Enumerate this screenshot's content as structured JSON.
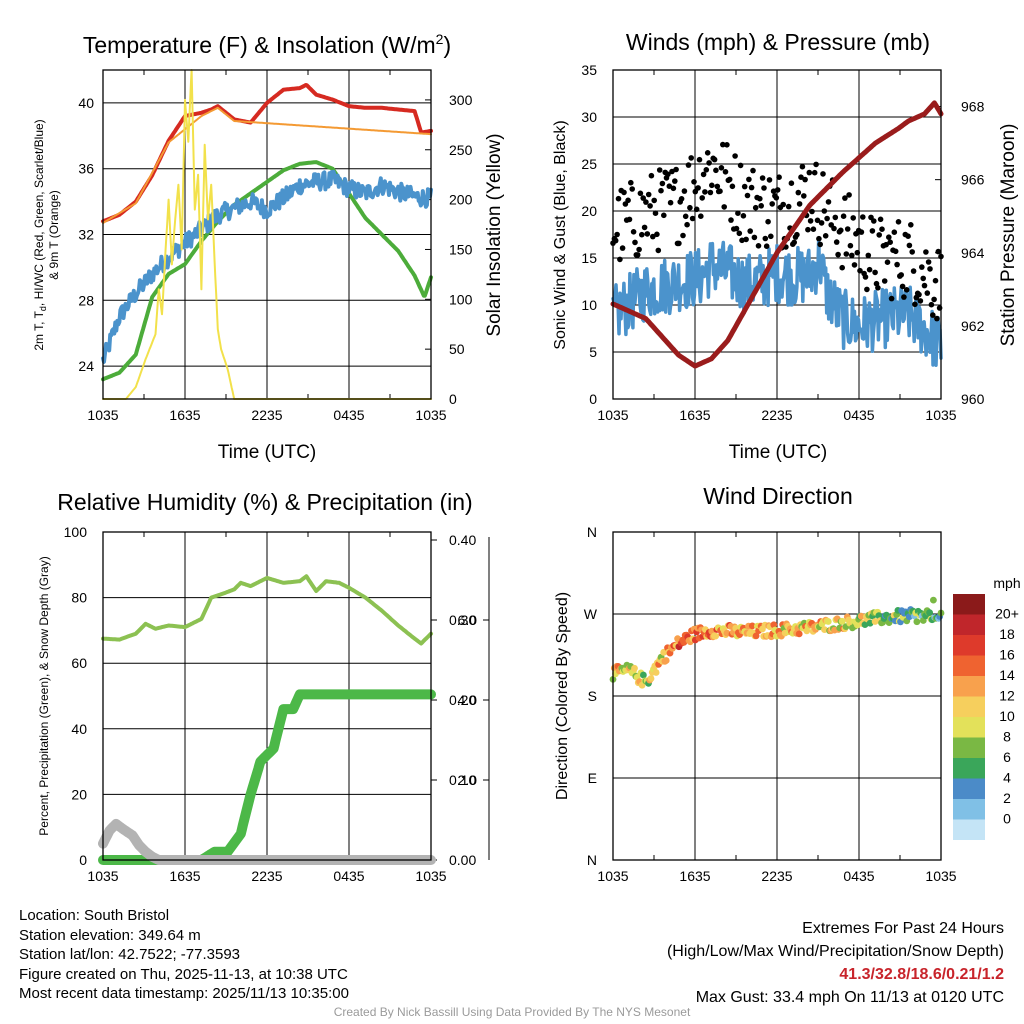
{
  "chart_data": [
    {
      "id": "temp",
      "type": "line",
      "title": "Temperature (F) & Insolation (W/m",
      "title_sup": "2",
      "title_close": ")",
      "xlabel": "Time (UTC)",
      "ylabel_lines": [
        "2m T, T",
        "d",
        ", HI/WC (Red, Green, Scarlet/Blue)",
        "& 9m T (Orange)"
      ],
      "y2label": "Solar Insolation (Yellow)",
      "xticks": [
        "1035",
        "1635",
        "2235",
        "0435",
        "1035"
      ],
      "ylim": [
        22,
        42
      ],
      "yticks": [
        24,
        28,
        32,
        36,
        40
      ],
      "y2lim": [
        0,
        330
      ],
      "y2ticks": [
        0,
        50,
        100,
        150,
        200,
        250,
        300
      ],
      "series": [
        {
          "name": "2m T",
          "color": "#d62a21",
          "width": 4,
          "x": [
            0,
            0.05,
            0.1,
            0.15,
            0.2,
            0.25,
            0.3,
            0.33,
            0.35,
            0.4,
            0.45,
            0.5,
            0.55,
            0.6,
            0.62,
            0.65,
            0.7,
            0.75,
            0.8,
            0.85,
            0.9,
            0.95,
            0.97,
            1.0
          ],
          "y": [
            32.8,
            33.2,
            34.0,
            35.6,
            37.7,
            39.2,
            39.4,
            39.6,
            39.8,
            39.0,
            38.8,
            40.0,
            40.8,
            40.9,
            41.1,
            40.5,
            40.2,
            39.8,
            39.7,
            39.7,
            39.6,
            39.5,
            38.2,
            38.3
          ]
        },
        {
          "name": "9m T",
          "color": "#f49a33",
          "width": 2,
          "x": [
            0,
            0.1,
            0.2,
            0.3,
            0.35,
            0.4,
            1.0
          ],
          "y": [
            32.7,
            33.9,
            37.6,
            39.2,
            39.7,
            38.9,
            38.1
          ]
        },
        {
          "name": "Td",
          "color": "#4cac3a",
          "width": 4,
          "x": [
            0,
            0.05,
            0.1,
            0.15,
            0.2,
            0.25,
            0.3,
            0.35,
            0.4,
            0.45,
            0.5,
            0.55,
            0.6,
            0.65,
            0.7,
            0.75,
            0.8,
            0.85,
            0.9,
            0.95,
            0.98,
            1.0
          ],
          "y": [
            23.2,
            23.6,
            24.7,
            28.2,
            29.6,
            30.2,
            31.6,
            32.8,
            33.8,
            34.5,
            35.2,
            35.9,
            36.3,
            36.4,
            36.0,
            34.5,
            33.0,
            32.0,
            31.0,
            29.5,
            28.2,
            29.4
          ]
        },
        {
          "name": "HI/WC",
          "color": "#4b93cc",
          "width": 4,
          "noise": 0.55,
          "x": [
            0,
            0.05,
            0.1,
            0.15,
            0.2,
            0.25,
            0.3,
            0.35,
            0.4,
            0.45,
            0.5,
            0.55,
            0.6,
            0.65,
            0.7,
            0.75,
            0.8,
            0.85,
            0.9,
            0.95,
            1.0
          ],
          "y": [
            24.3,
            27.0,
            28.4,
            29.6,
            30.6,
            31.5,
            32.3,
            33.2,
            33.6,
            34.0,
            33.5,
            34.2,
            35.0,
            35.2,
            35.3,
            34.8,
            34.5,
            35.0,
            34.6,
            34.3,
            34.2
          ]
        },
        {
          "name": "Solar",
          "axis": "y2",
          "color": "#f2e14b",
          "width": 2,
          "x": [
            0,
            0.07,
            0.1,
            0.13,
            0.16,
            0.17,
            0.18,
            0.19,
            0.2,
            0.21,
            0.22,
            0.23,
            0.24,
            0.25,
            0.26,
            0.27,
            0.28,
            0.29,
            0.3,
            0.31,
            0.32,
            0.33,
            0.34,
            0.35,
            0.36,
            0.38,
            0.4,
            0.45,
            1.0
          ],
          "y": [
            0,
            0,
            12,
            40,
            65,
            110,
            85,
            145,
            200,
            135,
            180,
            215,
            150,
            300,
            258,
            330,
            190,
            225,
            110,
            255,
            180,
            215,
            140,
            70,
            50,
            30,
            0,
            0,
            0
          ]
        }
      ]
    },
    {
      "id": "wind",
      "type": "scatter",
      "title": "Winds (mph) & Pressure (mb)",
      "xlabel": "Time (UTC)",
      "ylabel": "Sonic Wind & Gust (Blue, Black)",
      "y2label": "Station Pressure (Maroon)",
      "xticks": [
        "1035",
        "1635",
        "2235",
        "0435",
        "1035"
      ],
      "ylim": [
        0,
        35
      ],
      "yticks": [
        0,
        5,
        10,
        15,
        20,
        25,
        30,
        35
      ],
      "y2lim": [
        960,
        969
      ],
      "y2ticks": [
        960,
        962,
        964,
        966,
        968
      ],
      "sustained": {
        "color": "#4b93cc",
        "x": [
          0,
          0.1,
          0.2,
          0.27,
          0.3,
          0.35,
          0.4,
          0.45,
          0.5,
          0.55,
          0.6,
          0.63,
          0.65,
          0.7,
          0.75,
          0.8,
          0.85,
          0.9,
          0.95,
          1.0
        ],
        "y": [
          8.8,
          11.5,
          12.5,
          13.0,
          14.2,
          13.5,
          12.3,
          12.5,
          13.5,
          13.0,
          13.2,
          15.0,
          11.5,
          8.5,
          7.8,
          8.3,
          8.8,
          9.0,
          7.5,
          5.5
        ],
        "noise": 3.2
      },
      "gust": {
        "color": "#000000",
        "x": [
          0,
          0.2,
          0.3,
          0.4,
          0.5,
          0.6,
          0.7,
          0.8,
          0.9,
          1.0
        ],
        "y": [
          18,
          21,
          25,
          21,
          20,
          22,
          18,
          15,
          15,
          12
        ],
        "spread": 4.5,
        "count": 240
      },
      "pressure": {
        "color": "#9a1c1c",
        "x": [
          0,
          0.1,
          0.2,
          0.25,
          0.3,
          0.35,
          0.4,
          0.5,
          0.6,
          0.7,
          0.8,
          0.87,
          0.9,
          0.95,
          0.98,
          1.0
        ],
        "y": [
          962.6,
          962.2,
          961.2,
          960.9,
          961.1,
          961.6,
          962.4,
          964.0,
          965.3,
          966.2,
          967.0,
          967.4,
          967.6,
          967.8,
          968.1,
          967.8
        ]
      }
    },
    {
      "id": "rh",
      "type": "line",
      "title": "Relative Humidity (%) & Precipitation (in)",
      "ylabel_lines": [
        "Percent, Precipitation (Green), & Snow Depth (Gray)"
      ],
      "xticks": [
        "1035",
        "1635",
        "2235",
        "0435",
        "1035"
      ],
      "ylim": [
        0,
        100
      ],
      "yticks": [
        0,
        20,
        40,
        60,
        80,
        100
      ],
      "y2lim": [
        0,
        0.41
      ],
      "y2ticks": [
        "0.00",
        "0.10",
        "0.20",
        "0.30",
        "0.40"
      ],
      "y3ticks": [
        "2.0",
        "4.0",
        "6.0"
      ],
      "series": [
        {
          "name": "RH",
          "color": "#8cc152",
          "width": 4,
          "x": [
            0,
            0.05,
            0.1,
            0.13,
            0.16,
            0.2,
            0.25,
            0.3,
            0.33,
            0.36,
            0.4,
            0.42,
            0.45,
            0.5,
            0.55,
            0.6,
            0.62,
            0.65,
            0.68,
            0.72,
            0.75,
            0.8,
            0.85,
            0.9,
            0.95,
            0.97,
            1.0
          ],
          "y": [
            67.5,
            67.2,
            69,
            72,
            70.5,
            71.5,
            71,
            73.5,
            80,
            81,
            82.5,
            84.5,
            83.5,
            86,
            84.5,
            85,
            86.5,
            82,
            85,
            84.5,
            83,
            80,
            76,
            71.5,
            67.5,
            66,
            69
          ]
        },
        {
          "name": "Precip",
          "color": "#4cb848",
          "width": 10,
          "x": [
            0,
            0.3,
            0.34,
            0.38,
            0.42,
            0.45,
            0.48,
            0.52,
            0.55,
            0.58,
            0.6,
            0.65,
            1.0
          ],
          "y": [
            0,
            0,
            2.5,
            2.5,
            8,
            20,
            30,
            34,
            46,
            46,
            50.5,
            50.5,
            50.5
          ]
        },
        {
          "name": "Snow",
          "color": "#b3b3b3",
          "width": 10,
          "x": [
            0,
            0.02,
            0.04,
            0.06,
            0.09,
            0.11,
            0.13,
            0.15,
            0.17
          ],
          "y": [
            5,
            9,
            11,
            9.5,
            7.5,
            4.5,
            2.5,
            1,
            0
          ]
        }
      ]
    },
    {
      "id": "dir",
      "type": "scatter",
      "title": "Wind Direction",
      "ylabel": "Direction (Colored By Speed)",
      "xticks": [
        "1035",
        "1635",
        "2235",
        "0435",
        "1035"
      ],
      "yticks": [
        "N",
        "E",
        "S",
        "W",
        "N"
      ],
      "ylim": [
        0,
        360
      ],
      "dir_x": [
        0,
        0.05,
        0.1,
        0.15,
        0.2,
        0.25,
        0.3,
        0.4,
        0.5,
        0.6,
        0.7,
        0.8,
        0.9,
        1.0
      ],
      "dir_y": [
        205,
        208,
        195,
        222,
        238,
        248,
        252,
        250,
        252,
        255,
        260,
        265,
        268,
        268
      ],
      "dir_spread": 7,
      "speed_x": [
        0,
        0.1,
        0.2,
        0.3,
        0.5,
        0.7,
        0.8,
        1.0
      ],
      "speed_y": [
        10,
        7,
        14,
        12,
        11,
        10,
        6,
        4
      ],
      "count": 260,
      "legend": {
        "title": "mph",
        "labels": [
          "20+",
          "18",
          "16",
          "14",
          "12",
          "10",
          "8",
          "6",
          "4",
          "2",
          "0"
        ],
        "colors": [
          "#8b1a1a",
          "#c0262b",
          "#de3a2b",
          "#ef6330",
          "#f8a14d",
          "#f6cf5d",
          "#e3e15a",
          "#7ab844",
          "#3aa65a",
          "#4b8bc8",
          "#80c0e6",
          "#c4e4f6"
        ]
      }
    }
  ],
  "station": {
    "location": "Location: South Bristol",
    "elevation": "Station elevation: 349.64 m",
    "latlon": "Station lat/lon: 42.7522; -77.3593",
    "created": "Figure created on Thu, 2025-11-13, at 10:38 UTC",
    "recent": "Most recent data timestamp: 2025/11/13 10:35:00"
  },
  "extremes": {
    "title": "Extremes For Past 24 Hours",
    "subtitle": "(High/Low/Max Wind/Precipitation/Snow Depth)",
    "values": "41.3/32.8/18.6/0.21/1.2",
    "gust": "Max Gust: 33.4 mph On 11/13 at 0120 UTC"
  },
  "credit": "Created By Nick Bassill Using Data Provided By The NYS Mesonet"
}
